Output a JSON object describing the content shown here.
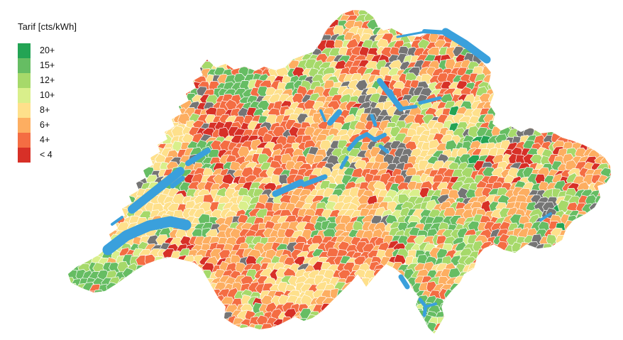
{
  "legend": {
    "title": "Tarif [cts/kWh]",
    "items": [
      {
        "label": "20+",
        "color": "#23a454"
      },
      {
        "label": "15+",
        "color": "#66bd63"
      },
      {
        "label": "12+",
        "color": "#a6d96a"
      },
      {
        "label": "10+",
        "color": "#d9ef8b"
      },
      {
        "label": "8+",
        "color": "#fee08b"
      },
      {
        "label": "6+",
        "color": "#fdae61"
      },
      {
        "label": "4+",
        "color": "#f46d43"
      },
      {
        "label": "< 4",
        "color": "#d73027"
      }
    ]
  },
  "chart_data": {
    "type": "choropleth",
    "region": "Switzerland, colored by municipality",
    "legend_title": "Tarif [cts/kWh]",
    "classes": [
      {
        "label": "20+",
        "color": "#23a454"
      },
      {
        "label": "15+",
        "color": "#66bd63"
      },
      {
        "label": "12+",
        "color": "#a6d96a"
      },
      {
        "label": "10+",
        "color": "#d9ef8b"
      },
      {
        "label": "8+",
        "color": "#fee08b"
      },
      {
        "label": "6+",
        "color": "#fdae61"
      },
      {
        "label": "4+",
        "color": "#f46d43"
      },
      {
        "label": "< 4",
        "color": "#d73027"
      }
    ],
    "water_color": "#3aa0dc",
    "no_data_color": "#757575",
    "municipality_border_color": "#ffffff",
    "background": "#ffffff",
    "legend_position": "top-left"
  }
}
